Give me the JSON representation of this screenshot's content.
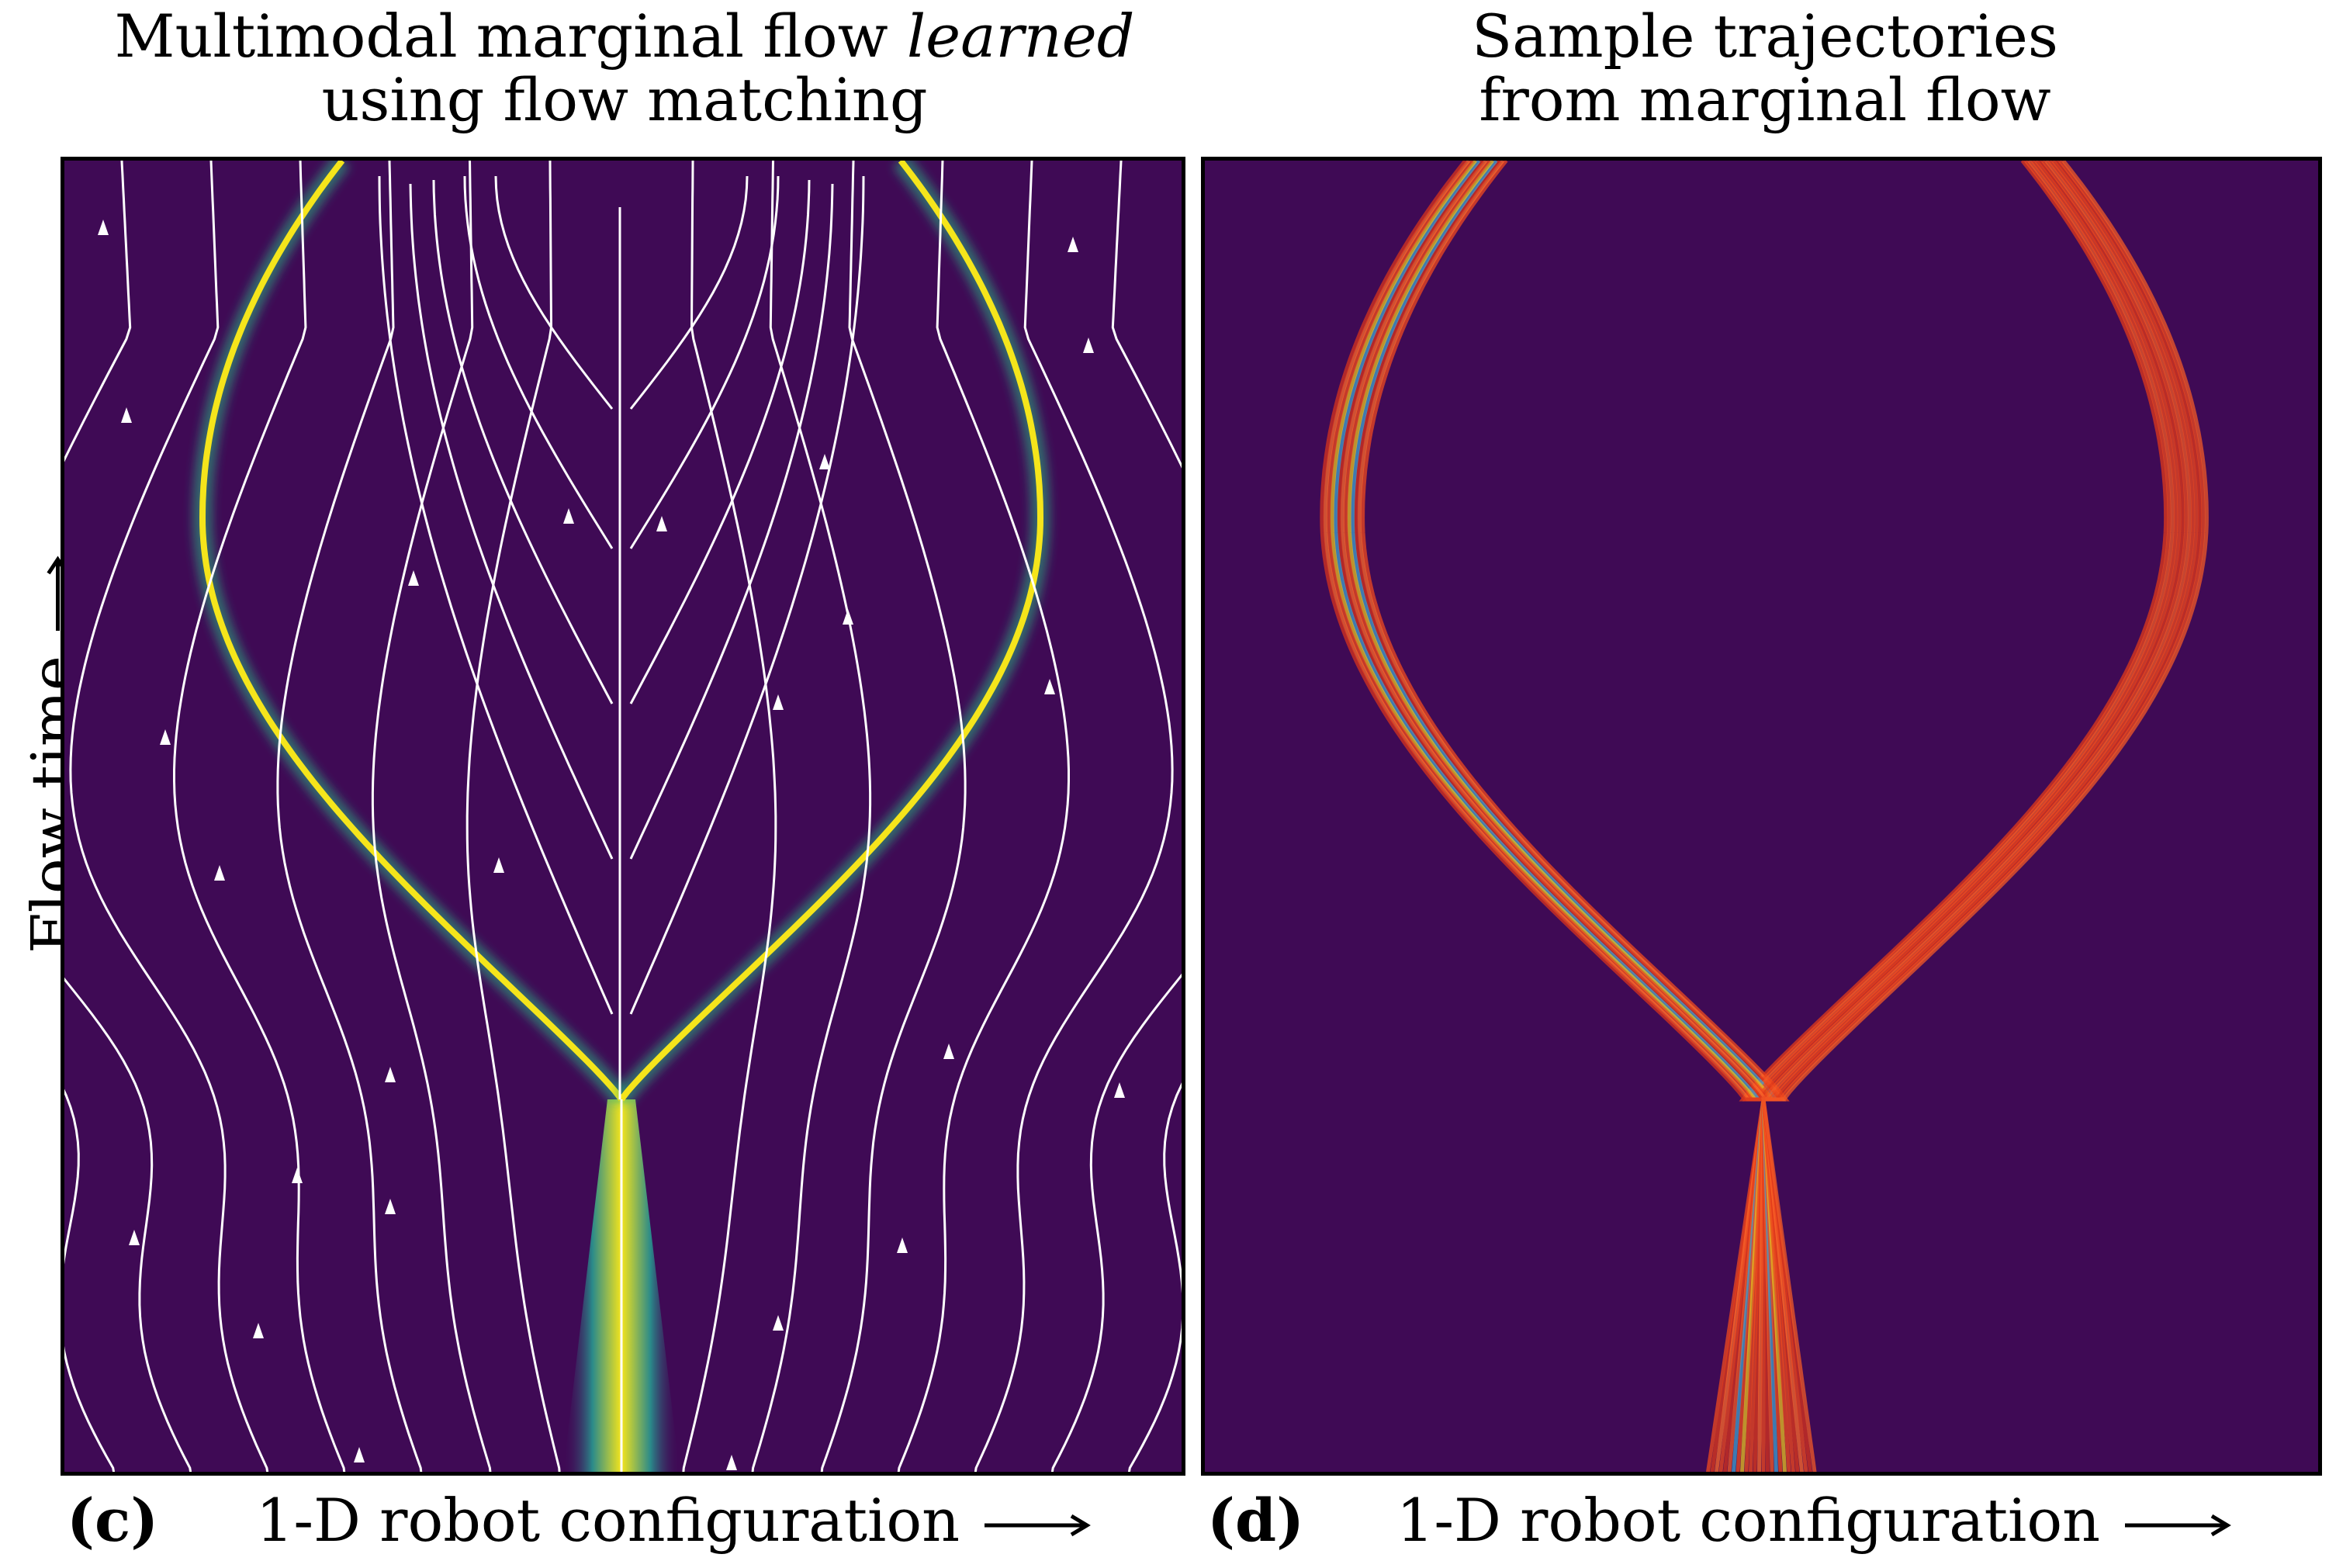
{
  "panel_c": {
    "title_line1_pre": "Multimodal marginal flow ",
    "title_line1_em": "learned",
    "title_line2": "using flow matching",
    "letter": "(c)",
    "xlabel": "1-D robot configuration"
  },
  "panel_d": {
    "title_line1": "Sample trajectories",
    "title_line2": "from marginal flow",
    "letter": "(d)",
    "xlabel": "1-D robot configuration"
  },
  "ylabel": "Flow time",
  "colors": {
    "background": "#3f0a55",
    "streamline": "#ffffff",
    "density_core": "#f5e51b",
    "density_edge": "#2ab07f",
    "trajectory_main": "#f04a1e",
    "trajectory_alt": "#3fa0d0"
  },
  "chart_data": {
    "type": "other",
    "panels": [
      {
        "id": "c",
        "content": "streamline plot of learned velocity field with bimodal density"
      },
      {
        "id": "d",
        "content": "sampled trajectories splitting into two modes"
      }
    ]
  }
}
